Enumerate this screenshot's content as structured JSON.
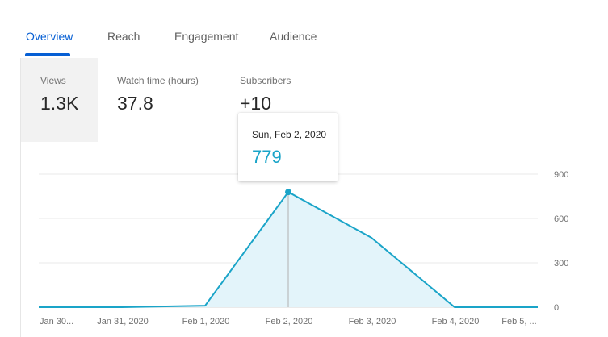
{
  "tabs": [
    {
      "label": "Overview",
      "active": true
    },
    {
      "label": "Reach",
      "active": false
    },
    {
      "label": "Engagement",
      "active": false
    },
    {
      "label": "Audience",
      "active": false
    }
  ],
  "metrics": [
    {
      "label": "Views",
      "value": "1.3K",
      "selected": true
    },
    {
      "label": "Watch time (hours)",
      "value": "37.8",
      "selected": false
    },
    {
      "label": "Subscribers",
      "value": "+10",
      "selected": false
    }
  ],
  "tooltip": {
    "date": "Sun, Feb 2, 2020",
    "value": "779"
  },
  "colors": {
    "accent": "#065fd4",
    "line": "#1aa4c8",
    "area": "#e3f4fa"
  },
  "chart_data": {
    "type": "area",
    "x": [
      "Jan 30...",
      "Jan 31, 2020",
      "Feb 1, 2020",
      "Feb 2, 2020",
      "Feb 3, 2020",
      "Feb 4, 2020",
      "Feb 5, ..."
    ],
    "series": [
      {
        "values": [
          0,
          0,
          10,
          779,
          470,
          0,
          0
        ]
      }
    ],
    "ylim": [
      0,
      900
    ],
    "yticks": [
      0,
      300,
      600,
      900
    ],
    "highlight_index": 3,
    "grid": true
  }
}
